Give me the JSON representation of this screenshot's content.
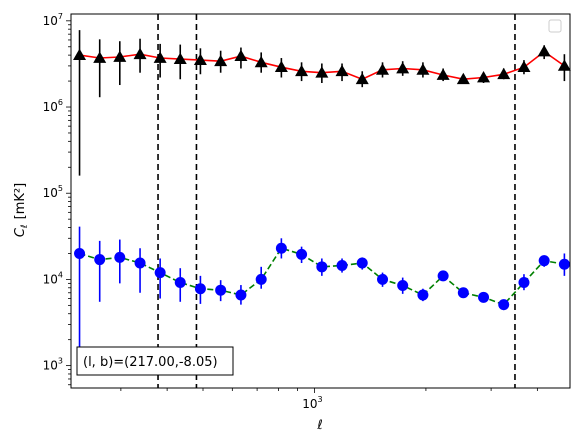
{
  "chart_data": {
    "type": "scatter",
    "title": "",
    "xlabel": "ℓ",
    "ylabel_main": "C",
    "ylabel_sub": "ℓ",
    "ylabel_unit": "[mK²]",
    "xscale": "log",
    "yscale": "log",
    "xlim": [
      220,
      4900
    ],
    "ylim": [
      550,
      12000000
    ],
    "x_ticks": [
      {
        "value": 1000,
        "base": "10",
        "exp": "3"
      }
    ],
    "y_ticks": [
      {
        "value": 1000,
        "base": "10",
        "exp": "3"
      },
      {
        "value": 10000,
        "base": "10",
        "exp": "4"
      },
      {
        "value": 100000,
        "base": "10",
        "exp": "5"
      },
      {
        "value": 1000000,
        "base": "10",
        "exp": "6"
      },
      {
        "value": 10000000,
        "base": "10",
        "exp": "7"
      }
    ],
    "grid": false,
    "legend": "top-right",
    "vlines": [
      378,
      480,
      3480
    ],
    "annotation": "(l, b)=(217.00,-8.05)",
    "series": [
      {
        "color": "#000000",
        "line_color": "#ff0000",
        "line_style": "solid",
        "marker": "triangle",
        "x": [
          232,
          263,
          298,
          338,
          383,
          434,
          492,
          558,
          633,
          718,
          814,
          923,
          1047,
          1187,
          1346,
          1527,
          1731,
          1963,
          2226,
          2524,
          2862,
          3245,
          3680,
          4173,
          4732
        ],
        "y": [
          4000000,
          3700000,
          3800000,
          4100000,
          3700000,
          3600000,
          3500000,
          3400000,
          3900000,
          3300000,
          2900000,
          2600000,
          2500000,
          2600000,
          2100000,
          2700000,
          2800000,
          2700000,
          2350000,
          2100000,
          2200000,
          2400000,
          2900000,
          4400000,
          3000000
        ],
        "y_lo": [
          160000,
          1300000,
          1800000,
          2500000,
          2200000,
          2100000,
          2400000,
          2500000,
          2800000,
          2500000,
          2200000,
          2000000,
          1900000,
          2000000,
          1700000,
          2200000,
          2300000,
          2200000,
          2000000,
          1900000,
          1900000,
          2100000,
          2400000,
          3600000,
          2000000
        ],
        "y_hi": [
          7800000,
          6100000,
          5800000,
          6200000,
          5400000,
          5300000,
          4800000,
          4500000,
          4900000,
          4300000,
          3700000,
          3300000,
          3200000,
          3200000,
          2600000,
          3300000,
          3400000,
          3300000,
          2800000,
          2400000,
          2500000,
          2800000,
          3500000,
          5200000,
          4100000
        ]
      },
      {
        "color": "#0000ff",
        "line_color": "#008000",
        "line_style": "dashed",
        "marker": "circle",
        "x": [
          232,
          263,
          298,
          338,
          383,
          434,
          492,
          558,
          633,
          718,
          814,
          923,
          1047,
          1187,
          1346,
          1527,
          1731,
          1963,
          2226,
          2524,
          2862,
          3245,
          3680,
          4173,
          4732
        ],
        "y": [
          20000,
          17000,
          18000,
          15500,
          12000,
          9200,
          7800,
          7500,
          6600,
          10000,
          23000,
          19500,
          14000,
          14500,
          15500,
          10000,
          8500,
          6600,
          11000,
          7000,
          6200,
          5100,
          9200,
          16500,
          15000
        ],
        "y_lo": [
          1100,
          5500,
          9000,
          7000,
          6000,
          5500,
          5200,
          5600,
          5100,
          7800,
          17500,
          15500,
          11000,
          12000,
          13000,
          8200,
          6800,
          5600,
          9600,
          6100,
          5500,
          4400,
          7500,
          14000,
          11000
        ],
        "y_hi": [
          41000,
          28000,
          29000,
          23000,
          17500,
          13500,
          11000,
          9800,
          8600,
          14000,
          30000,
          24000,
          17500,
          17500,
          18000,
          12000,
          10500,
          7800,
          12500,
          8000,
          7000,
          5800,
          11500,
          19000,
          20000
        ]
      }
    ]
  }
}
